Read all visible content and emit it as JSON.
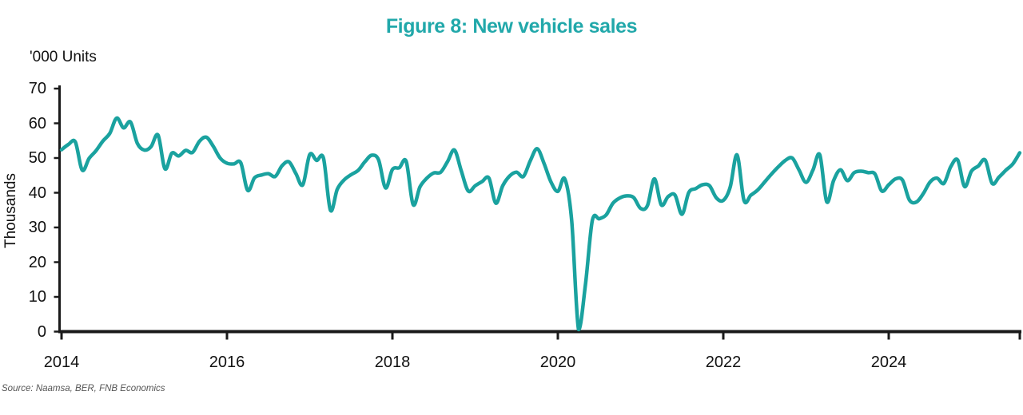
{
  "title": "Figure 8: New vehicle sales",
  "unit_label": "'000 Units",
  "y_axis_title": "Thousands",
  "source_note": "Source: Naamsa, BER, FNB Economics",
  "colors": {
    "title_teal": "#21a8aa",
    "line_teal": "#1aa29f",
    "axis_black": "#1a1a1a",
    "source_gray": "#555555"
  },
  "chart_data": {
    "type": "line",
    "title": "Figure 8: New vehicle sales",
    "xlabel": "",
    "ylabel": "Thousands",
    "unit_label": "'000 Units",
    "ylim": [
      0,
      70
    ],
    "y_ticks": [
      "0",
      "10",
      "20",
      "30",
      "40",
      "50",
      "60",
      "70"
    ],
    "x_tick_labels": [
      "2014",
      "2016",
      "2018",
      "2020",
      "2022",
      "2024"
    ],
    "x_start": "2014-01",
    "frequency": "monthly",
    "grid": false,
    "legend": "none",
    "series": [
      {
        "name": "New vehicle sales ('000 units)",
        "values": [
          52.4,
          53.9,
          54.6,
          46.5,
          49.9,
          52.1,
          54.9,
          57.1,
          61.5,
          58.7,
          60.4,
          54.2,
          52.3,
          53.3,
          56.6,
          46.9,
          51.4,
          50.6,
          52.2,
          51.6,
          54.8,
          56.0,
          53.4,
          50.0,
          48.5,
          48.3,
          48.6,
          40.7,
          44.3,
          45.1,
          45.5,
          44.7,
          47.8,
          48.9,
          45.5,
          42.3,
          51.0,
          49.3,
          49.9,
          35.0,
          41.0,
          43.7,
          45.2,
          46.4,
          48.9,
          50.8,
          49.4,
          41.4,
          46.7,
          47.2,
          49.0,
          36.6,
          41.7,
          44.2,
          45.7,
          45.9,
          49.0,
          52.3,
          46.2,
          40.5,
          42.0,
          43.2,
          44.2,
          37.0,
          42.0,
          44.8,
          45.9,
          44.7,
          49.2,
          52.7,
          48.4,
          43.1,
          40.4,
          44.0,
          32.0,
          0.6,
          13.5,
          32.0,
          32.5,
          33.6,
          37.0,
          38.5,
          39.1,
          38.6,
          35.5,
          36.3,
          44.0,
          36.5,
          38.9,
          39.3,
          33.8,
          40.1,
          41.2,
          42.3,
          42.0,
          38.5,
          37.8,
          41.6,
          50.9,
          37.8,
          39.3,
          40.8,
          43.1,
          45.4,
          47.5,
          49.3,
          50.0,
          46.5,
          43.0,
          46.5,
          50.9,
          37.4,
          43.5,
          46.6,
          43.5,
          45.8,
          46.2,
          45.8,
          45.4,
          40.5,
          42.3,
          44.0,
          43.6,
          37.9,
          37.3,
          39.7,
          43.1,
          44.2,
          42.7,
          47.5,
          49.4,
          41.8,
          46.2,
          47.7,
          49.4,
          42.7,
          44.5,
          46.5,
          48.3,
          51.5
        ]
      }
    ]
  }
}
